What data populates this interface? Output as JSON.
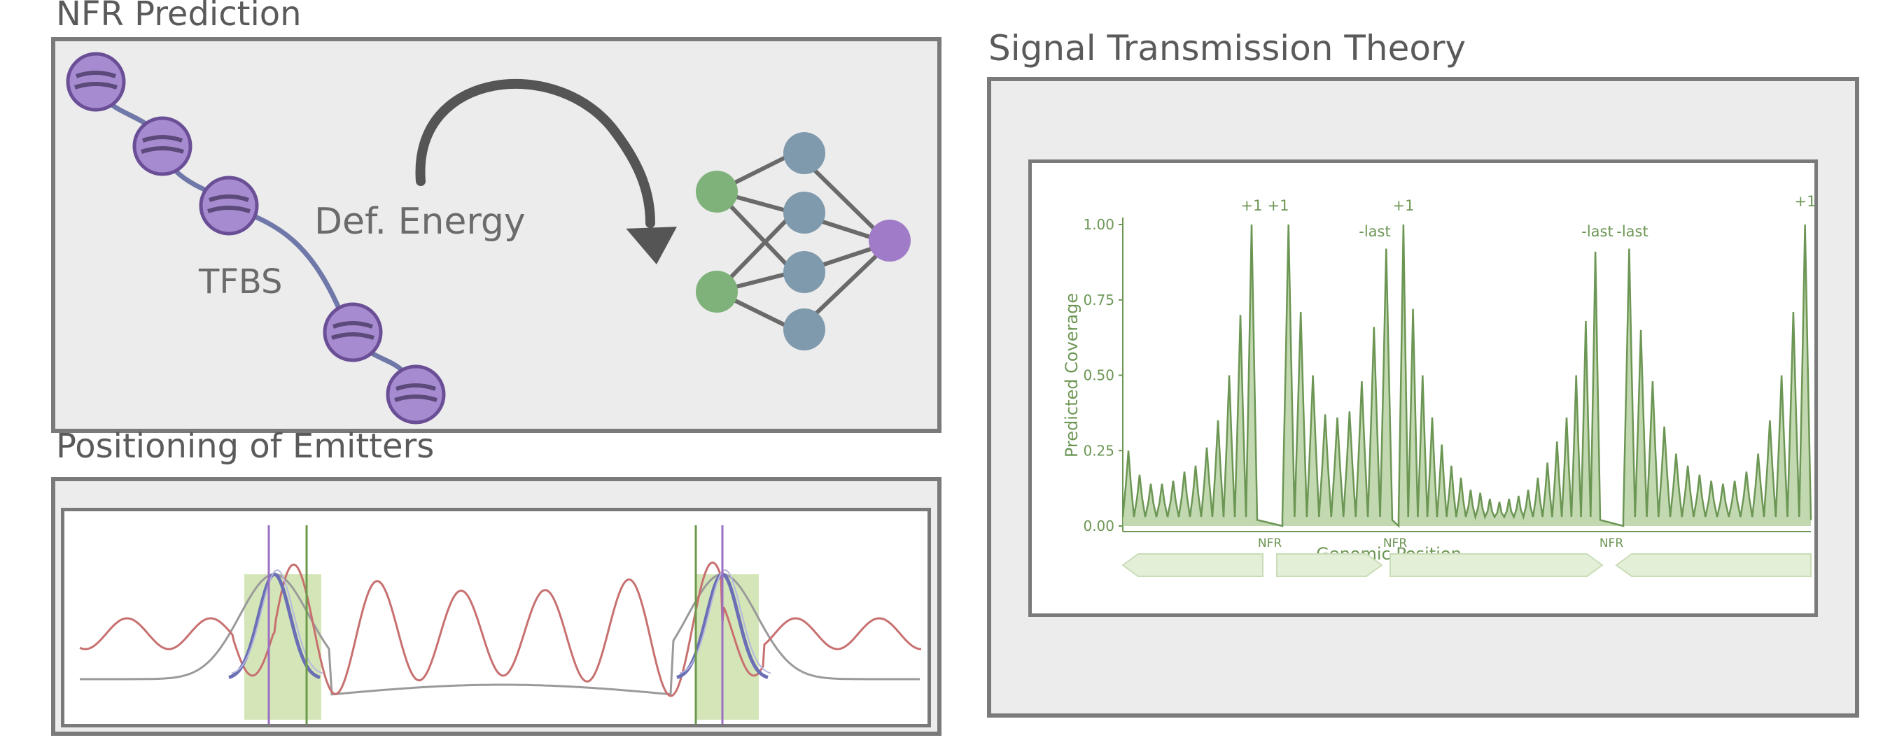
{
  "nfr": {
    "title": "NFR Prediction",
    "tfbs_label": "TFBS",
    "energy_label": "Def. Energy",
    "icons": [
      "nucleosome-icon",
      "curved-arrow-icon",
      "neural-network-icon"
    ]
  },
  "emitters": {
    "title": "Positioning of Emitters"
  },
  "signal": {
    "title": "Signal Transmission Theory"
  },
  "colors": {
    "nucleosome": "#a78bd0",
    "linker": "#6f78a8",
    "nn_input": "#7fb27a",
    "nn_hidden": "#7f9aad",
    "nn_output": "#a07cc8",
    "coverage": "#6c9654",
    "coverage_fill": "#b7d1a2",
    "red_wave": "#c87070",
    "blue_curve": "#6b6fb5",
    "purple_line": "#9a6fc4",
    "green_line": "#6c9a4a"
  },
  "chart_data": {
    "type": "area",
    "xlabel": "Genomic Position",
    "ylabel": "Predicted Coverage",
    "ylim": [
      0,
      1
    ],
    "yticks": [
      "0.00",
      "0.25",
      "0.50",
      "0.75",
      "1.00"
    ],
    "nfr_labels": [
      "NFR",
      "NFR",
      "NFR"
    ],
    "peak_labels": [
      "+1",
      "+1",
      "-last",
      "+1",
      "-last",
      "-last",
      "+1"
    ],
    "grid": false,
    "legend": "none"
  }
}
